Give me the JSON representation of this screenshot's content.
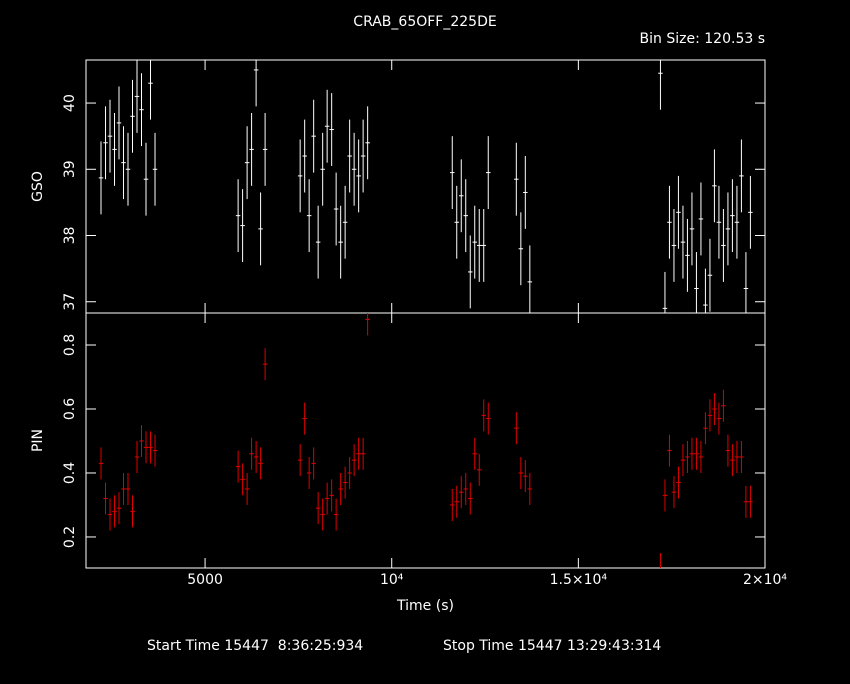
{
  "title": "CRAB_65OFF_225DE",
  "bin_size": "Bin Size: 120.53 s",
  "start_time": "Start Time 15447  8:36:25:934",
  "stop_time": "Stop Time 15447 13:29:43:314",
  "chart_data": [
    {
      "type": "errorbar",
      "ylabel": "GSO",
      "color": "#ffffff",
      "xlim": [
        1810,
        20000
      ],
      "ylim": [
        36.83,
        40.65
      ],
      "yticks": [
        37,
        38,
        39,
        40
      ],
      "xerr": 60.27,
      "yerr": 0.55,
      "x": [
        2212,
        2333,
        2453,
        2574,
        2694,
        2815,
        2935,
        3056,
        3176,
        3297,
        3417,
        3538,
        3659,
        5885,
        6005,
        6126,
        6246,
        6367,
        6487,
        6608,
        7547,
        7668,
        7788,
        7909,
        8029,
        8150,
        8270,
        8391,
        8511,
        8632,
        8752,
        8873,
        8993,
        9114,
        9234,
        9355,
        11622,
        11742,
        11863,
        11983,
        12104,
        12224,
        12345,
        12465,
        12586,
        13338,
        13459,
        13579,
        13700,
        17199,
        17320,
        17440,
        17561,
        17681,
        17802,
        17922,
        18043,
        18163,
        18284,
        18404,
        18525,
        18645,
        18766,
        18886,
        19007,
        19127,
        19248,
        19368,
        19489,
        19609
      ],
      "values": [
        38.87,
        39.4,
        39.5,
        39.3,
        39.7,
        39.1,
        39.0,
        39.8,
        40.1,
        39.9,
        38.85,
        40.3,
        39.0,
        38.3,
        38.15,
        39.1,
        39.3,
        40.5,
        38.1,
        39.3,
        38.9,
        39.2,
        38.3,
        39.5,
        37.9,
        39.0,
        39.65,
        39.6,
        38.4,
        37.9,
        38.2,
        39.2,
        39.0,
        38.9,
        39.2,
        39.4,
        38.95,
        38.2,
        38.6,
        38.3,
        37.45,
        37.9,
        37.85,
        37.85,
        38.95,
        38.85,
        37.8,
        38.65,
        37.3,
        40.45,
        36.9,
        38.2,
        37.85,
        38.35,
        37.9,
        37.7,
        38.1,
        37.2,
        38.25,
        36.95,
        37.4,
        38.75,
        38.2,
        37.85,
        38.1,
        38.3,
        38.2,
        38.9,
        37.2,
        38.35
      ]
    },
    {
      "type": "errorbar",
      "ylabel": "PIN",
      "xlabel": "Time (s)",
      "color": "#e00000",
      "xlim": [
        1810,
        20000
      ],
      "ylim": [
        0.103,
        0.9
      ],
      "yticks": [
        0.2,
        0.4,
        0.6,
        0.8
      ],
      "xticks": [
        5000,
        {
          "value": 10000,
          "label": "10⁴"
        },
        {
          "value": 15000,
          "label": "1.5×10⁴"
        },
        {
          "value": 20000,
          "label": "2×10⁴"
        }
      ],
      "xerr": 60.27,
      "yerr": 0.05,
      "x": [
        2212,
        2333,
        2453,
        2574,
        2694,
        2815,
        2935,
        3056,
        3176,
        3297,
        3417,
        3538,
        3659,
        5885,
        6005,
        6126,
        6246,
        6367,
        6487,
        6608,
        7547,
        7668,
        7788,
        7909,
        8029,
        8150,
        8270,
        8391,
        8511,
        8632,
        8752,
        8873,
        8993,
        9114,
        9234,
        9355,
        11622,
        11742,
        11863,
        11983,
        12104,
        12224,
        12345,
        12465,
        12586,
        13338,
        13459,
        13579,
        13700,
        17199,
        17320,
        17440,
        17561,
        17681,
        17802,
        17922,
        18043,
        18163,
        18284,
        18404,
        18525,
        18645,
        18766,
        18886,
        19007,
        19127,
        19248,
        19368,
        19489,
        19609
      ],
      "values": [
        0.43,
        0.32,
        0.27,
        0.28,
        0.29,
        0.35,
        0.35,
        0.28,
        0.45,
        0.5,
        0.48,
        0.48,
        0.47,
        0.42,
        0.38,
        0.35,
        0.46,
        0.45,
        0.43,
        0.74,
        0.44,
        0.57,
        0.4,
        0.43,
        0.29,
        0.27,
        0.32,
        0.33,
        0.27,
        0.35,
        0.37,
        0.4,
        0.44,
        0.46,
        0.46,
        0.88,
        0.3,
        0.31,
        0.34,
        0.35,
        0.32,
        0.46,
        0.41,
        0.58,
        0.57,
        0.54,
        0.4,
        0.39,
        0.35,
        0.1,
        0.33,
        0.47,
        0.34,
        0.37,
        0.44,
        0.45,
        0.46,
        0.46,
        0.45,
        0.54,
        0.58,
        0.6,
        0.57,
        0.61,
        0.47,
        0.44,
        0.45,
        0.45,
        0.31,
        0.31
      ]
    }
  ]
}
